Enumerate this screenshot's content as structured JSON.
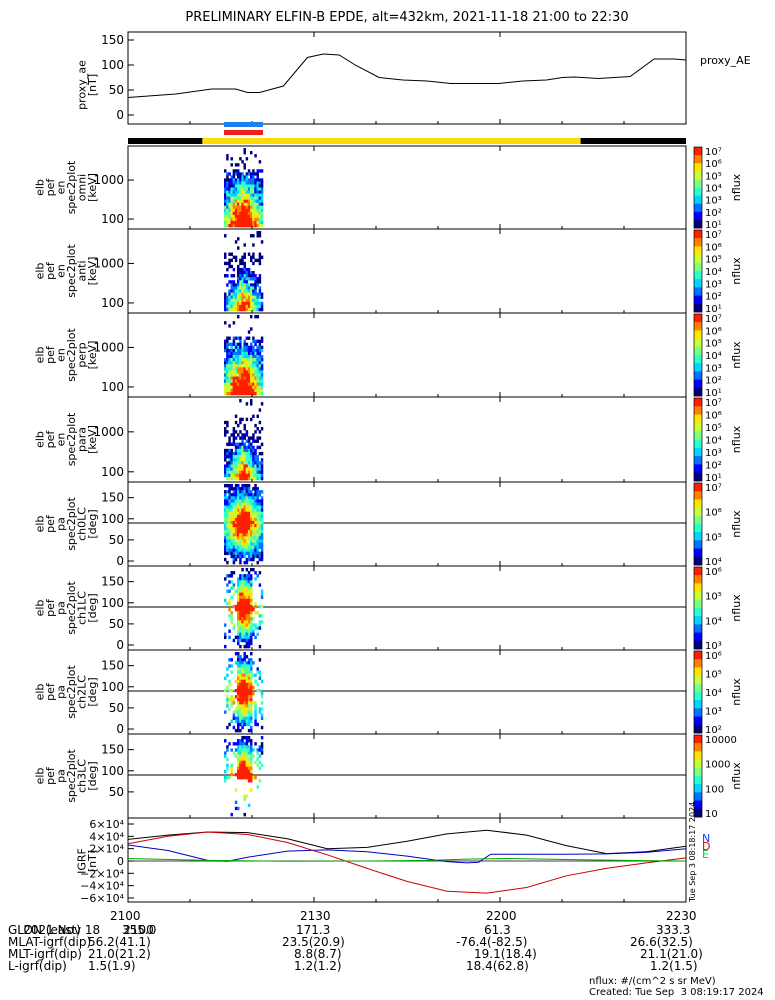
{
  "title": "PRELIMINARY ELFIN-B EPDE, alt=432km, 2021-11-18 21:00 to 22:30",
  "chart_data": [
    {
      "type": "line",
      "ylabel_lines": [
        "proxy_ae",
        "[nT]"
      ],
      "yticks": [
        "150",
        "100",
        "50",
        "0"
      ],
      "ylim": [
        0,
        150
      ],
      "series_name": "proxy_AE",
      "x_minutes": [
        0,
        12,
        21,
        27,
        30,
        33,
        39,
        45,
        49,
        53,
        57,
        63,
        69,
        75,
        81,
        87,
        93,
        99,
        105,
        109,
        112,
        118,
        126,
        132,
        137,
        140
      ],
      "values": [
        35,
        42,
        52,
        52,
        45,
        45,
        58,
        115,
        122,
        120,
        100,
        75,
        70,
        68,
        63,
        63,
        63,
        68,
        70,
        75,
        76,
        73,
        77,
        112,
        112,
        110
      ]
    },
    {
      "type": "heatmap",
      "panels": [
        {
          "ylabel_lines": [
            "elb",
            "pef",
            "en",
            "spec2plot",
            "omni",
            "[keV]"
          ],
          "yticks": [
            "1000",
            "100"
          ],
          "cbar_ticks": [
            "10⁷",
            "10⁶",
            "10⁵",
            "10⁴",
            "10³",
            "10²",
            "10¹"
          ],
          "cbar_label": "nflux"
        },
        {
          "ylabel_lines": [
            "elb",
            "pef",
            "en",
            "spec2plot",
            "anti",
            "[keV]"
          ],
          "yticks": [
            "1000",
            "100"
          ],
          "cbar_ticks": [
            "10⁷",
            "10⁶",
            "10⁵",
            "10⁴",
            "10³",
            "10²",
            "10¹"
          ],
          "cbar_label": "nflux"
        },
        {
          "ylabel_lines": [
            "elb",
            "pef",
            "en",
            "spec2plot",
            "perp",
            "[keV]"
          ],
          "yticks": [
            "1000",
            "100"
          ],
          "cbar_ticks": [
            "10⁷",
            "10⁶",
            "10⁵",
            "10⁴",
            "10³",
            "10²",
            "10¹"
          ],
          "cbar_label": "nflux"
        },
        {
          "ylabel_lines": [
            "elb",
            "pef",
            "en",
            "spec2plot",
            "para",
            "[keV]"
          ],
          "yticks": [
            "1000",
            "100"
          ],
          "cbar_ticks": [
            "10⁷",
            "10⁶",
            "10⁵",
            "10⁴",
            "10³",
            "10²",
            "10¹"
          ],
          "cbar_label": "nflux"
        },
        {
          "ylabel_lines": [
            "elb",
            "pef",
            "pa",
            "spec2plot",
            "ch0LC",
            "[deg]"
          ],
          "yticks": [
            "150",
            "100",
            "50",
            "0"
          ],
          "cbar_ticks": [
            "10⁷",
            "10⁶",
            "10⁵",
            "10⁴"
          ],
          "cbar_label": "nflux"
        },
        {
          "ylabel_lines": [
            "elb",
            "pef",
            "pa",
            "spec2plot",
            "ch1LC",
            "[deg]"
          ],
          "yticks": [
            "150",
            "100",
            "50",
            "0"
          ],
          "cbar_ticks": [
            "10⁶",
            "10⁵",
            "10⁴",
            "10³"
          ],
          "cbar_label": "nflux"
        },
        {
          "ylabel_lines": [
            "elb",
            "pef",
            "pa",
            "spec2plot",
            "ch2LC",
            "[deg]"
          ],
          "yticks": [
            "150",
            "100",
            "50",
            "0"
          ],
          "cbar_ticks": [
            "10⁶",
            "10⁵",
            "10⁴",
            "10³",
            "10²"
          ],
          "cbar_label": "nflux"
        },
        {
          "ylabel_lines": [
            "elb",
            "pef",
            "pa",
            "spec2plot",
            "ch3LC",
            "[deg]"
          ],
          "yticks": [
            "150",
            "100",
            "50"
          ],
          "cbar_ticks": [
            "10000",
            "1000",
            "100",
            "10"
          ],
          "cbar_label": "nflux"
        }
      ]
    },
    {
      "type": "line",
      "ylabel_lines": [
        "IGRF",
        "[nT]"
      ],
      "yticks": [
        "6×10⁴",
        "4×10⁴",
        "2×10⁴",
        "0",
        "−2×10⁴",
        "−4×10⁴",
        "−6×10⁴"
      ],
      "ylim": [
        -60000,
        60000
      ],
      "legend": [
        "N",
        "D",
        "E"
      ],
      "series": [
        {
          "color": "#000000",
          "x_minutes": [
            0,
            10,
            20,
            30,
            40,
            50,
            60,
            70,
            80,
            90,
            100,
            110,
            120,
            130,
            140
          ],
          "values": [
            35000,
            42000,
            47000,
            46000,
            36000,
            20000,
            22000,
            32000,
            44000,
            50000,
            42000,
            25000,
            12000,
            15000,
            24000
          ]
        },
        {
          "color": "#0000cc",
          "x_minutes": [
            0,
            10,
            20,
            25,
            30,
            40,
            50,
            60,
            70,
            80,
            85,
            88,
            91,
            100,
            110,
            120,
            130,
            140
          ],
          "values": [
            26000,
            17000,
            1000,
            -500,
            6000,
            16000,
            18000,
            15000,
            8000,
            -1000,
            -3000,
            -2000,
            11000,
            11000,
            11000,
            11500,
            14000,
            20000
          ]
        },
        {
          "color": "#cc0000",
          "x_minutes": [
            0,
            10,
            20,
            30,
            40,
            50,
            60,
            70,
            80,
            90,
            100,
            110,
            120,
            130,
            140
          ],
          "values": [
            28000,
            40000,
            47000,
            43000,
            30000,
            10000,
            -12000,
            -33000,
            -49000,
            -52000,
            -43000,
            -24000,
            -12000,
            -3000,
            5000
          ]
        },
        {
          "color": "#00aa00",
          "x_minutes": [
            0,
            20,
            40,
            60,
            75,
            85,
            95,
            110,
            125,
            140
          ],
          "values": [
            4000,
            1000,
            -500,
            0,
            1000,
            3000,
            4000,
            2500,
            1000,
            0
          ]
        }
      ]
    }
  ],
  "xticks": [
    "2100",
    "2130",
    "2200",
    "2230"
  ],
  "footer_rows": [
    [
      "2021 Nov 18",
      "2100",
      "",
      "",
      ""
    ],
    [
      "GLON (east)",
      "355.0",
      "171.3",
      "61.3",
      "333.3"
    ],
    [
      "MLAT-igrf(dip)",
      "56.2(41.1)",
      "23.5(20.9)",
      "-76.4(-82.5)",
      "26.6(32.5)"
    ],
    [
      "MLT-igrf(dip)",
      "21.0(21.2)",
      "8.8(8.7)",
      "19.1(18.4)",
      "21.1(21.0)"
    ],
    [
      "L-igrf(dip)",
      "1.5(1.9)",
      "1.2(1.2)",
      "18.4(62.8)",
      "1.2(1.5)"
    ]
  ],
  "side_stamp": "Tue Sep  3 08:18:17 2024",
  "nflux_note": "nflux: #/(cm^2 s sr MeV)",
  "created": "Created: Tue Sep  3 08:19:17 2024",
  "colors": {
    "fast_bar": "#ffdd00",
    "black_bar": "#000000",
    "blue_bar": "#1e7ff0",
    "red_bar": "#ee1c1c"
  }
}
